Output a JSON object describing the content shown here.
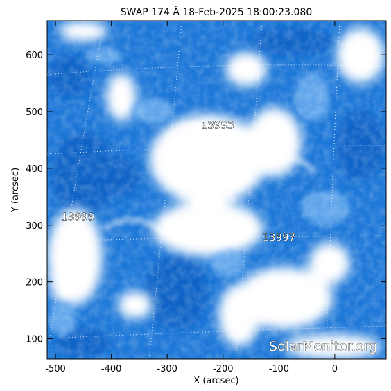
{
  "title": "SWAP 174 Å 18-Feb-2025 18:00:23.080",
  "x_axis": {
    "label": "X (arcsec)",
    "ticks": [
      -500,
      -400,
      -300,
      -200,
      -100,
      0
    ],
    "range": [
      -515,
      92
    ]
  },
  "y_axis": {
    "label": "Y (arcsec)",
    "ticks": [
      100,
      200,
      300,
      400,
      500,
      600
    ],
    "range": [
      64,
      660
    ]
  },
  "regions": [
    {
      "number": "13993",
      "x": -210,
      "y": 470
    },
    {
      "number": "13999",
      "x": -460,
      "y": 308
    },
    {
      "number": "13997",
      "x": -100,
      "y": 272
    }
  ],
  "watermark": "SolarMonitor.org",
  "colors": {
    "background": "#ffffff",
    "frame": "#000000",
    "image_base": "#1e78d8",
    "image_dark": "#1060c4",
    "image_bright": "#ffffff",
    "grid": "#ffffff"
  }
}
